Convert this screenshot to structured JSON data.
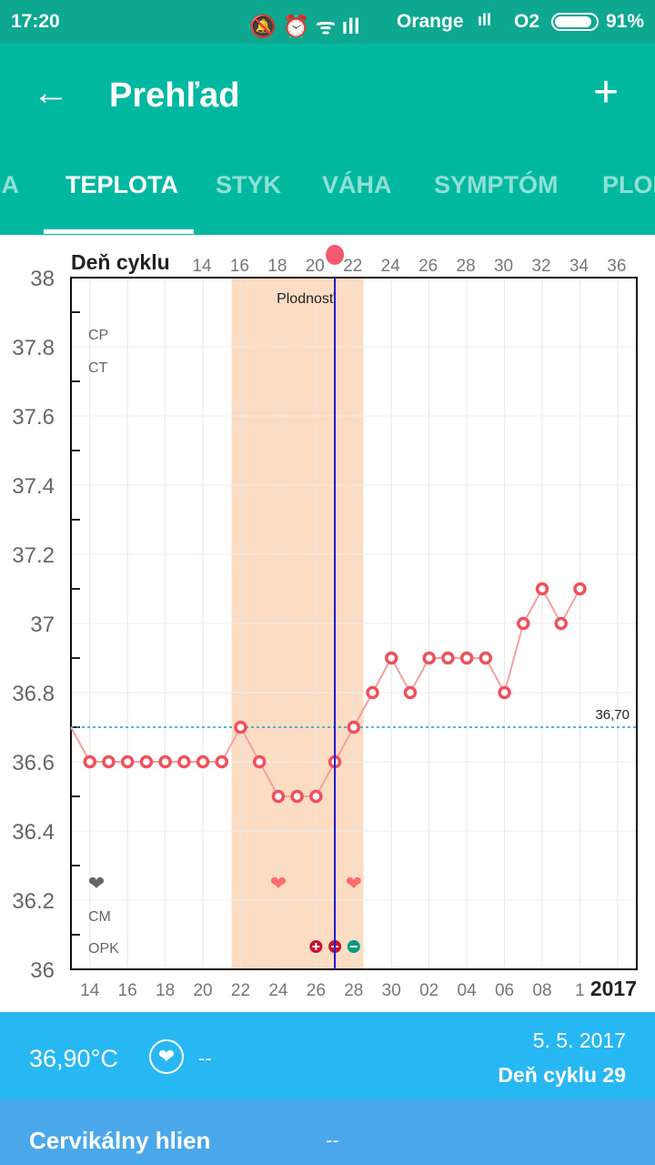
{
  "status": {
    "time": "17:20",
    "carrier1": "Orange",
    "carrier2": "O2",
    "battery": "91%"
  },
  "appbar": {
    "title": "Prehľad",
    "back_icon": "arrow-left-icon",
    "add_icon": "plus-icon"
  },
  "tabs": [
    {
      "label": "IA"
    },
    {
      "label": "TEPLOTA",
      "active": true
    },
    {
      "label": "STYK"
    },
    {
      "label": "VÁHA"
    },
    {
      "label": "SYMPTÓM"
    },
    {
      "label": "PLOD"
    }
  ],
  "chart_data": {
    "type": "line",
    "top_axis_label": "Deň cyklu",
    "top_ticks": [
      "14",
      "16",
      "18",
      "20",
      "22",
      "24",
      "26",
      "28",
      "30",
      "32",
      "34",
      "36"
    ],
    "x_ticks": [
      "14",
      "16",
      "18",
      "20",
      "22",
      "24",
      "26",
      "28",
      "30",
      "02",
      "04",
      "06",
      "08",
      "1"
    ],
    "year_label": "2017",
    "ylim": [
      36,
      38
    ],
    "y_ticks": [
      "36",
      "36.2",
      "36.4",
      "36.6",
      "36.8",
      "37",
      "37.2",
      "37.4",
      "37.6",
      "37.8",
      "38"
    ],
    "x": [
      "13.4.",
      "14.4.",
      "15.4.",
      "16.4.",
      "17.4.",
      "18.4.",
      "19.4.",
      "20.4.",
      "21.4.",
      "22.4.",
      "23.4.",
      "24.4.",
      "25.4.",
      "26.4.",
      "27.4.",
      "28.4.",
      "29.4.",
      "30.4.",
      "1.5.",
      "2.5.",
      "3.5.",
      "4.5.",
      "5.5.",
      "6.5.",
      "7.5.",
      "8.5.",
      "9.5.",
      "10.5."
    ],
    "values": [
      36.7,
      36.6,
      36.6,
      36.6,
      36.6,
      36.6,
      36.6,
      36.6,
      36.6,
      36.7,
      36.6,
      36.5,
      36.5,
      36.5,
      36.6,
      36.7,
      36.8,
      36.9,
      36.8,
      36.9,
      36.9,
      36.9,
      36.9,
      36.8,
      37.0,
      37.1,
      37.0,
      37.1
    ],
    "coverline": {
      "value": 36.7,
      "label": "36,70"
    },
    "fertile_window": {
      "label": "Plodnosť",
      "from": "22.4.",
      "to": "28.4."
    },
    "selected_day": "27.4.",
    "row_labels": [
      "CP",
      "CT",
      "CM",
      "OPK"
    ],
    "intercourse": [
      {
        "day": "24.4.",
        "color": "#ff6b6b"
      },
      {
        "day": "28.4.",
        "color": "#ff6b6b"
      }
    ],
    "opk": [
      {
        "day": "26.4.",
        "result": "+",
        "color": "#c8102e"
      },
      {
        "day": "27.4.",
        "result": "+",
        "color": "#c8102e"
      },
      {
        "day": "28.4.",
        "result": "-",
        "color": "#0a9a84"
      }
    ],
    "colors": {
      "line": "#f5a0a0",
      "point": "#f0505a",
      "fertile": "#fddcc4",
      "selected": "#1a1acc",
      "coverline": "#1e9ad6"
    }
  },
  "info": {
    "temperature": "36,90°C",
    "heart_value": "--",
    "date": "5. 5. 2017",
    "cycle_day": "Deň cyklu 29"
  },
  "cm": {
    "label": "Cervikálny hlien",
    "value": "--"
  }
}
